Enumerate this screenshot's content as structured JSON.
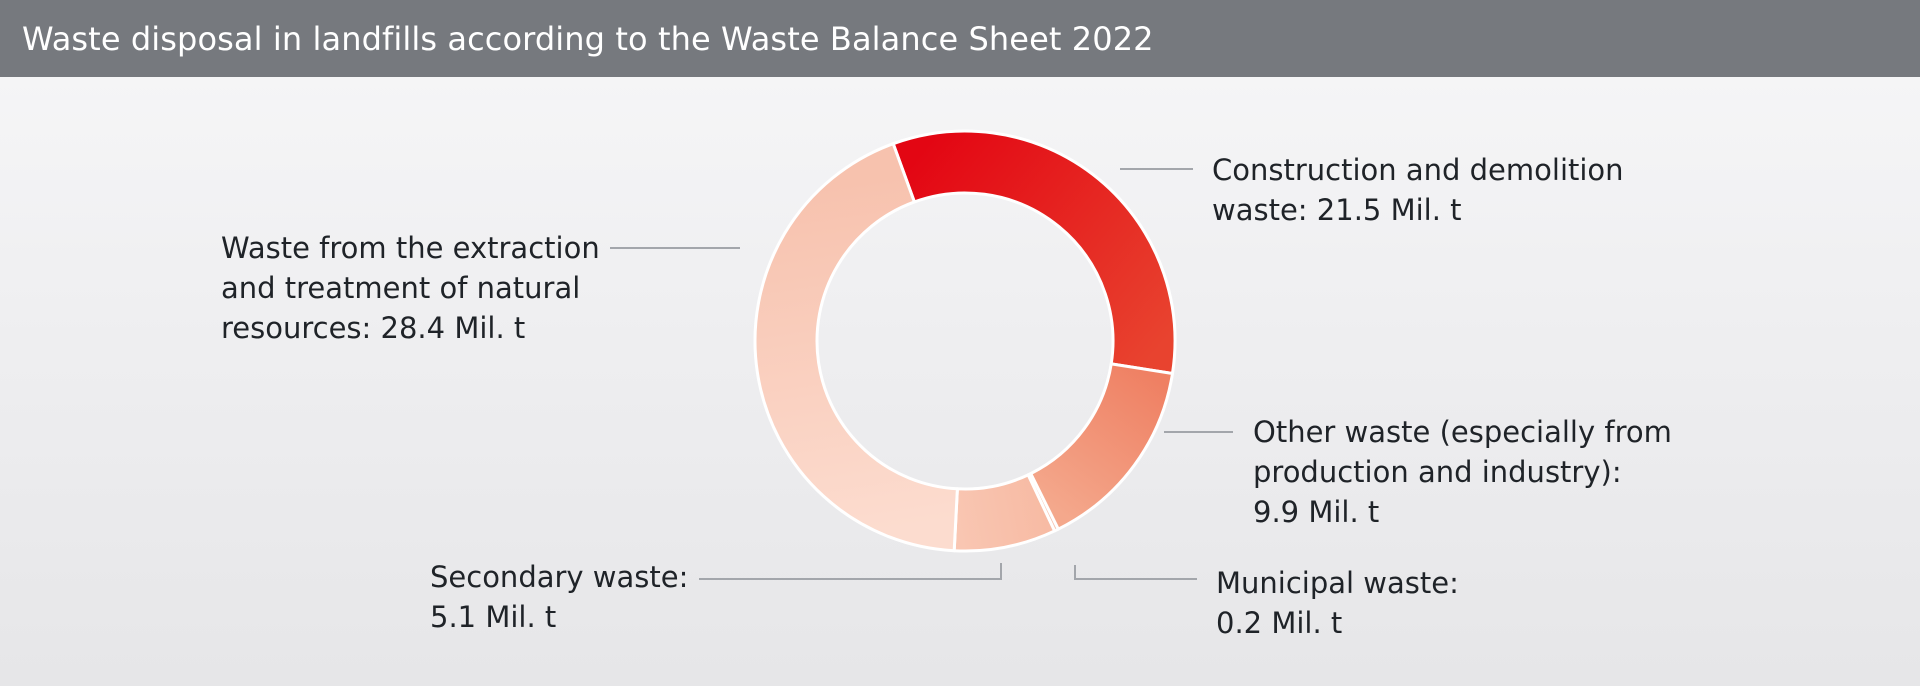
{
  "title": "Waste disposal in landfills according to the Waste Balance Sheet 2022",
  "chart_data": {
    "type": "pie",
    "donut": true,
    "title": "Waste disposal in landfills according to the Waste Balance Sheet 2022",
    "unit": "Mil. t",
    "legend": "none",
    "slices": [
      {
        "name": "Construction and demolition waste",
        "value": 21.5,
        "label_lines": [
          "Construction and demolition",
          "waste: 21.5 Mil. t"
        ],
        "colors": [
          "#e30613",
          "#e8432f"
        ]
      },
      {
        "name": "Other waste (especially from production and industry)",
        "value": 9.9,
        "label_lines": [
          "Other waste (especially from",
          "production and industry):",
          "9.9 Mil. t"
        ],
        "colors": [
          "#ef8063",
          "#f4a88c"
        ]
      },
      {
        "name": "Municipal waste",
        "value": 0.2,
        "label_lines": [
          "Municipal waste:",
          "0.2 Mil. t"
        ],
        "colors": [
          "#f6c0ab",
          "#f6c0ab"
        ]
      },
      {
        "name": "Secondary waste",
        "value": 5.1,
        "label_lines": [
          "Secondary waste:",
          "5.1 Mil. t"
        ],
        "colors": [
          "#f7bba4",
          "#f9c6b2"
        ]
      },
      {
        "name": "Waste from the extraction and treatment of natural resources",
        "value": 28.4,
        "label_lines": [
          "Waste from the extraction",
          "and treatment of natural",
          "resources: 28.4 Mil. t"
        ],
        "colors": [
          "#fcdccf",
          "#f7c2ae"
        ]
      }
    ]
  }
}
